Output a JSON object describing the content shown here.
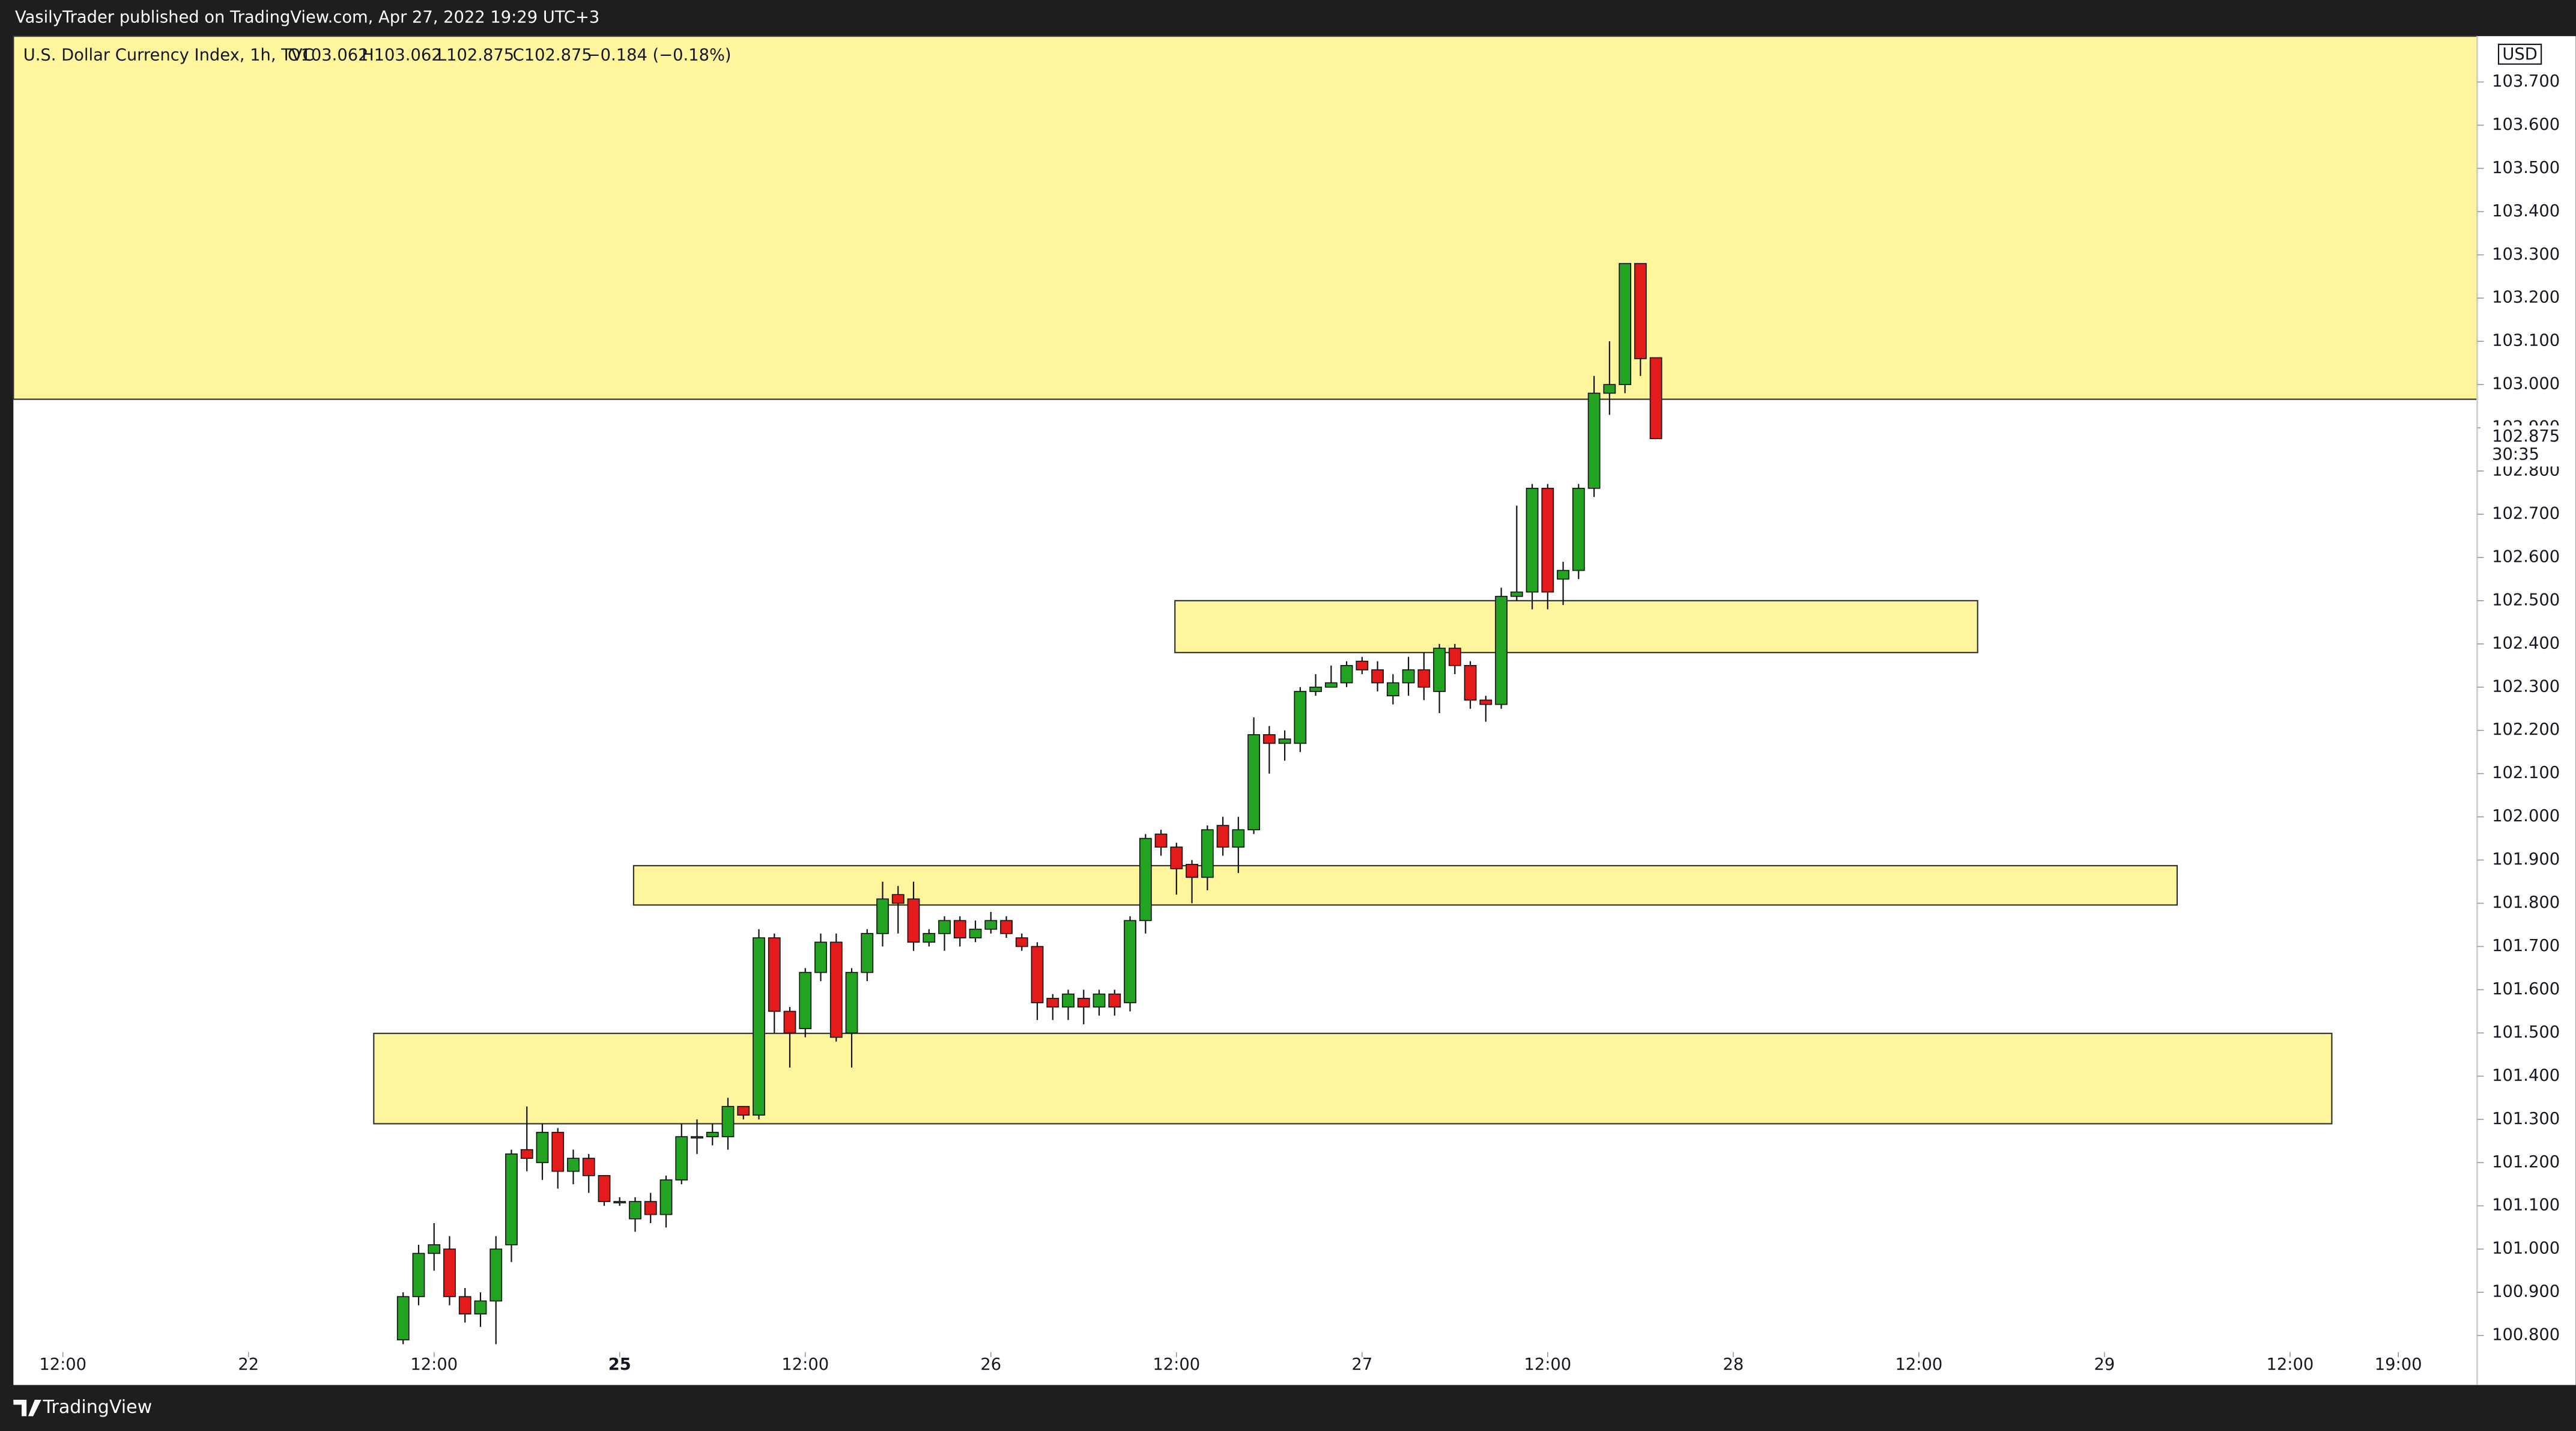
{
  "header": {
    "publisher": "VasilyTrader published on TradingView.com, Apr 27, 2022 19:29 UTC+3"
  },
  "footer": {
    "brand": "TradingView"
  },
  "chart_data": {
    "type": "candlestick",
    "legend": {
      "symbol": "U.S. Dollar Currency Index, 1h, TVC",
      "open": "O103.062",
      "high": "H103.062",
      "low": "L102.875",
      "close": "C102.875",
      "change": "−0.184 (−0.18%)"
    },
    "currency": "USD",
    "countdown": "30:35",
    "up_color": "#22a322",
    "down_color": "#e31b1b",
    "zone_color": "#fff59d",
    "x": [
      10,
      11,
      12,
      13,
      14,
      15,
      16,
      17,
      18,
      19,
      20,
      21,
      22,
      23,
      24,
      25,
      26,
      27,
      28,
      29,
      30,
      31,
      32,
      33,
      34,
      35,
      36,
      37,
      38,
      39,
      40,
      41,
      42,
      43,
      44,
      45,
      46,
      47,
      48,
      49,
      50,
      51,
      52,
      53,
      54,
      55,
      56,
      57,
      58,
      59,
      60,
      61,
      62,
      63,
      64,
      65,
      66,
      67,
      68,
      69,
      70,
      71,
      72,
      73,
      74,
      75,
      76,
      77,
      78,
      79,
      80,
      81,
      82,
      83,
      84,
      85,
      86,
      87,
      88,
      89,
      90,
      91
    ],
    "open": [
      100.79,
      100.89,
      100.99,
      101.0,
      100.89,
      100.85,
      100.88,
      101.01,
      101.23,
      101.2,
      101.27,
      101.18,
      101.21,
      101.17,
      101.11,
      101.07,
      101.11,
      101.08,
      101.16,
      101.26,
      101.26,
      101.26,
      101.33,
      101.31,
      101.72,
      101.55,
      101.51,
      101.64,
      101.71,
      101.5,
      101.64,
      101.73,
      101.82,
      101.81,
      101.71,
      101.73,
      101.76,
      101.72,
      101.74,
      101.76,
      101.72,
      101.7,
      101.58,
      101.56,
      101.58,
      101.56,
      101.59,
      101.57,
      101.76,
      101.96,
      101.93,
      101.89,
      101.86,
      101.98,
      101.93,
      101.97,
      102.19,
      102.17,
      102.17,
      102.29,
      102.3,
      102.31,
      102.36,
      102.34,
      102.28,
      102.31,
      102.34,
      102.29,
      102.39,
      102.35,
      102.27,
      102.26,
      102.51,
      102.52,
      102.76,
      102.55,
      102.57,
      102.76,
      102.98,
      103.0,
      103.28,
      103.062
    ],
    "high": [
      100.9,
      101.01,
      101.06,
      101.03,
      100.91,
      100.9,
      101.03,
      101.23,
      101.33,
      101.29,
      101.28,
      101.23,
      101.22,
      101.17,
      101.12,
      101.12,
      101.13,
      101.17,
      101.29,
      101.3,
      101.29,
      101.35,
      101.33,
      101.74,
      101.73,
      101.56,
      101.65,
      101.73,
      101.73,
      101.65,
      101.74,
      101.85,
      101.84,
      101.85,
      101.74,
      101.77,
      101.77,
      101.76,
      101.78,
      101.77,
      101.73,
      101.71,
      101.59,
      101.6,
      101.6,
      101.6,
      101.6,
      101.77,
      101.96,
      101.97,
      101.94,
      101.9,
      101.98,
      102.0,
      102.0,
      102.23,
      102.21,
      102.2,
      102.3,
      102.33,
      102.35,
      102.36,
      102.37,
      102.36,
      102.33,
      102.37,
      102.38,
      102.4,
      102.4,
      102.36,
      102.28,
      102.53,
      102.72,
      102.77,
      102.77,
      102.59,
      102.77,
      103.02,
      103.1,
      103.28,
      103.28,
      103.062
    ],
    "low": [
      100.78,
      100.87,
      100.95,
      100.87,
      100.83,
      100.82,
      100.78,
      100.97,
      101.18,
      101.16,
      101.14,
      101.15,
      101.13,
      101.1,
      101.1,
      101.04,
      101.06,
      101.05,
      101.15,
      101.22,
      101.24,
      101.23,
      101.3,
      101.3,
      101.5,
      101.42,
      101.49,
      101.62,
      101.48,
      101.42,
      101.62,
      101.7,
      101.73,
      101.69,
      101.7,
      101.69,
      101.7,
      101.71,
      101.73,
      101.72,
      101.69,
      101.53,
      101.53,
      101.53,
      101.52,
      101.54,
      101.54,
      101.55,
      101.73,
      101.91,
      101.82,
      101.8,
      101.83,
      101.91,
      101.87,
      101.96,
      102.1,
      102.13,
      102.15,
      102.28,
      102.3,
      102.3,
      102.33,
      102.29,
      102.26,
      102.28,
      102.27,
      102.24,
      102.33,
      102.25,
      102.22,
      102.25,
      102.5,
      102.48,
      102.48,
      102.49,
      102.55,
      102.74,
      102.93,
      102.98,
      103.02,
      102.875
    ],
    "close": [
      100.89,
      100.99,
      101.01,
      100.89,
      100.85,
      100.88,
      101.0,
      101.22,
      101.21,
      101.27,
      101.18,
      101.21,
      101.17,
      101.11,
      101.11,
      101.11,
      101.08,
      101.16,
      101.26,
      101.26,
      101.27,
      101.33,
      101.31,
      101.72,
      101.55,
      101.5,
      101.64,
      101.71,
      101.49,
      101.64,
      101.73,
      101.81,
      101.8,
      101.71,
      101.73,
      101.76,
      101.72,
      101.74,
      101.76,
      101.73,
      101.7,
      101.57,
      101.56,
      101.59,
      101.56,
      101.59,
      101.56,
      101.76,
      101.95,
      101.93,
      101.88,
      101.86,
      101.97,
      101.93,
      101.97,
      102.19,
      102.17,
      102.18,
      102.29,
      102.3,
      102.31,
      102.35,
      102.34,
      102.31,
      102.31,
      102.34,
      102.3,
      102.39,
      102.35,
      102.27,
      102.26,
      102.51,
      102.52,
      102.76,
      102.52,
      102.57,
      102.76,
      102.98,
      103.0,
      103.28,
      103.06,
      102.875
    ],
    "zones": [
      {
        "xlim": [
          -15.2,
          144.1
        ],
        "ylim": [
          102.966,
          103.806
        ]
      },
      {
        "xlim": [
          59.9,
          111.8
        ],
        "ylim": [
          102.38,
          102.5
        ]
      },
      {
        "xlim": [
          24.9,
          124.7
        ],
        "ylim": [
          101.796,
          101.887
        ]
      },
      {
        "xlim": [
          8.1,
          134.7
        ],
        "ylim": [
          101.29,
          101.499
        ]
      }
    ],
    "xlim": [
      -15.2,
      144.1
    ],
    "ylim": [
      100.773,
      103.806
    ],
    "xticks": [
      {
        "value": -12,
        "label": "12:00"
      },
      {
        "value": 0,
        "label": "22"
      },
      {
        "value": 12,
        "label": "12:00"
      },
      {
        "value": 24,
        "label": "25"
      },
      {
        "value": 36,
        "label": "12:00"
      },
      {
        "value": 48,
        "label": "26"
      },
      {
        "value": 60,
        "label": "12:00"
      },
      {
        "value": 72,
        "label": "27"
      },
      {
        "value": 84,
        "label": "12:00"
      },
      {
        "value": 96,
        "label": "28"
      },
      {
        "value": 108,
        "label": "12:00"
      },
      {
        "value": 120,
        "label": "29"
      },
      {
        "value": 132,
        "label": "12:00"
      },
      {
        "value": 139,
        "label": "19:00"
      }
    ],
    "yticks": [
      {
        "value": 100.8,
        "label": "100.800"
      },
      {
        "value": 100.9,
        "label": "100.900"
      },
      {
        "value": 101.0,
        "label": "101.000"
      },
      {
        "value": 101.1,
        "label": "101.100"
      },
      {
        "value": 101.2,
        "label": "101.200"
      },
      {
        "value": 101.3,
        "label": "101.300"
      },
      {
        "value": 101.4,
        "label": "101.400"
      },
      {
        "value": 101.5,
        "label": "101.500"
      },
      {
        "value": 101.6,
        "label": "101.600"
      },
      {
        "value": 101.7,
        "label": "101.700"
      },
      {
        "value": 101.8,
        "label": "101.800"
      },
      {
        "value": 101.9,
        "label": "101.900"
      },
      {
        "value": 102.0,
        "label": "102.000"
      },
      {
        "value": 102.1,
        "label": "102.100"
      },
      {
        "value": 102.2,
        "label": "102.200"
      },
      {
        "value": 102.3,
        "label": "102.300"
      },
      {
        "value": 102.4,
        "label": "102.400"
      },
      {
        "value": 102.5,
        "label": "102.500"
      },
      {
        "value": 102.6,
        "label": "102.600"
      },
      {
        "value": 102.7,
        "label": "102.700"
      },
      {
        "value": 102.8,
        "label": "102.800"
      },
      {
        "value": 102.9,
        "label": "102.900"
      },
      {
        "value": 103.0,
        "label": "103.000"
      },
      {
        "value": 103.1,
        "label": "103.100"
      },
      {
        "value": 103.2,
        "label": "103.200"
      },
      {
        "value": 103.3,
        "label": "103.300"
      },
      {
        "value": 103.4,
        "label": "103.400"
      },
      {
        "value": 103.5,
        "label": "103.500"
      },
      {
        "value": 103.6,
        "label": "103.600"
      },
      {
        "value": 103.7,
        "label": "103.700"
      }
    ]
  }
}
